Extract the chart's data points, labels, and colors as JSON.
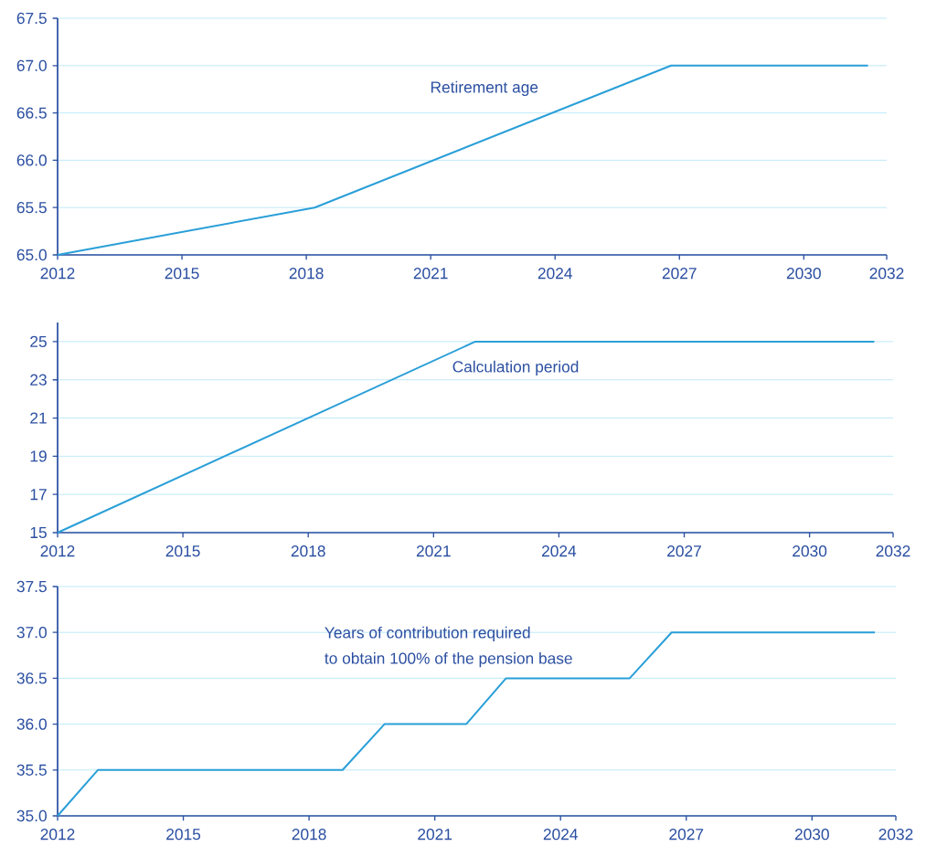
{
  "chart_data": [
    {
      "type": "line",
      "x": [
        2012,
        2018.2,
        2026.8,
        2031.55
      ],
      "series": [
        {
          "color": "#2a9fd8",
          "values": [
            65.0,
            65.5,
            67.0,
            67.0
          ]
        }
      ],
      "xlim": [
        2012,
        2032
      ],
      "xticks": [
        2012,
        2015,
        2018,
        2021,
        2024,
        2027,
        2030,
        2032
      ],
      "ylim": [
        65,
        67.5
      ],
      "yticks": [
        {
          "value": 65,
          "label": "65.0"
        },
        {
          "value": 65.5,
          "label": "65.5"
        },
        {
          "value": 66,
          "label": "66.0"
        },
        {
          "value": 66.5,
          "label": "66.5"
        },
        {
          "value": 67,
          "label": "67.0"
        },
        {
          "value": 67.5,
          "label": "67.5"
        }
      ],
      "grid": "y",
      "line_style": "solid",
      "annotations": [
        "Retirement age"
      ]
    },
    {
      "type": "line",
      "x": [
        2012,
        2022.0,
        2031.55
      ],
      "series": [
        {
          "color": "#2a9fd8",
          "values": [
            15,
            25,
            25
          ]
        }
      ],
      "xlim": [
        2012,
        2032
      ],
      "xticks": [
        2012,
        2015,
        2018,
        2021,
        2024,
        2027,
        2030,
        2032
      ],
      "ylim": [
        15,
        26
      ],
      "yticks": [
        15,
        17,
        19,
        21,
        23,
        25
      ],
      "grid": "y",
      "line_style": "solid",
      "annotations": [
        "Calculation period"
      ]
    },
    {
      "type": "line",
      "x": [
        2012,
        2012.96,
        2018.8,
        2019.8,
        2021.75,
        2022.7,
        2025.65,
        2026.65,
        2031.5
      ],
      "series": [
        {
          "color": "#2a9fd8",
          "values": [
            35.0,
            35.5,
            35.5,
            36.0,
            36.0,
            36.5,
            36.5,
            37.0,
            37.0
          ]
        }
      ],
      "xlim": [
        2012,
        2032
      ],
      "xticks": [
        2012,
        2015,
        2018,
        2021,
        2024,
        2027,
        2030,
        2032
      ],
      "ylim": [
        35,
        37.5
      ],
      "yticks": [
        {
          "value": 35,
          "label": "35.0"
        },
        {
          "value": 35.5,
          "label": "35.5"
        },
        {
          "value": 36,
          "label": "36.0"
        },
        {
          "value": 36.5,
          "label": "36.5"
        },
        {
          "value": 37,
          "label": "37.0"
        },
        {
          "value": 37.5,
          "label": "37.5"
        }
      ],
      "grid": "y",
      "line_style": "solid",
      "annotations": [
        "Years of contribution required",
        "to obtain 100% of the pension base"
      ]
    }
  ]
}
